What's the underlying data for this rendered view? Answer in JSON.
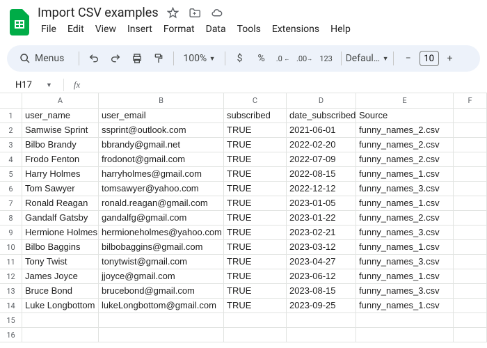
{
  "doc": {
    "title": "Import CSV examples"
  },
  "menubar": [
    "File",
    "Edit",
    "View",
    "Insert",
    "Format",
    "Data",
    "Tools",
    "Extensions",
    "Help"
  ],
  "toolbar": {
    "menus": "Menus",
    "zoom": "100%",
    "font": "Defaul…",
    "fontsize": "10"
  },
  "namebox": {
    "cell": "H17"
  },
  "columns": [
    "A",
    "B",
    "C",
    "D",
    "E",
    "F"
  ],
  "headers": [
    "user_name",
    "user_email",
    "subscribed",
    "date_subscribed",
    "Source"
  ],
  "rows": [
    [
      "Samwise Sprint",
      "ssprint@outlook.com",
      "TRUE",
      "2021-06-01",
      "funny_names_2.csv"
    ],
    [
      "Bilbo Brandy",
      "bbrandy@gmail.net",
      "TRUE",
      "2022-02-20",
      "funny_names_2.csv"
    ],
    [
      "Frodo Fenton",
      "frodonot@gmail.com",
      "TRUE",
      "2022-07-09",
      "funny_names_2.csv"
    ],
    [
      "Harry Holmes",
      "harryholmes@gmail.com",
      "TRUE",
      "2022-08-15",
      "funny_names_1.csv"
    ],
    [
      "Tom Sawyer",
      "tomsawyer@yahoo.com",
      "TRUE",
      "2022-12-12",
      "funny_names_3.csv"
    ],
    [
      "Ronald Reagan",
      "ronald.reagan@gmail.com",
      "TRUE",
      "2023-01-05",
      "funny_names_1.csv"
    ],
    [
      "Gandalf Gatsby",
      "gandalfg@gmail.com",
      "TRUE",
      "2023-01-22",
      "funny_names_2.csv"
    ],
    [
      "Hermione Holmes",
      "hermioneholmes@yahoo.com",
      "TRUE",
      "2023-02-21",
      "funny_names_3.csv"
    ],
    [
      "Bilbo Baggins",
      "bilbobaggins@gmail.com",
      "TRUE",
      "2023-03-12",
      "funny_names_1.csv"
    ],
    [
      "Tony Twist",
      "tonytwist@gmail.com",
      "TRUE",
      "2023-04-27",
      "funny_names_3.csv"
    ],
    [
      "James Joyce",
      "jjoyce@gmail.com",
      "TRUE",
      "2023-06-12",
      "funny_names_1.csv"
    ],
    [
      "Bruce Bond",
      "brucebond@gmail.com",
      "TRUE",
      "2023-08-15",
      "funny_names_3.csv"
    ],
    [
      "Luke Longbottom",
      "lukeLongbottom@gmail.com",
      "TRUE",
      "2023-09-25",
      "funny_names_1.csv"
    ]
  ],
  "empty_rows": [
    15,
    16
  ]
}
